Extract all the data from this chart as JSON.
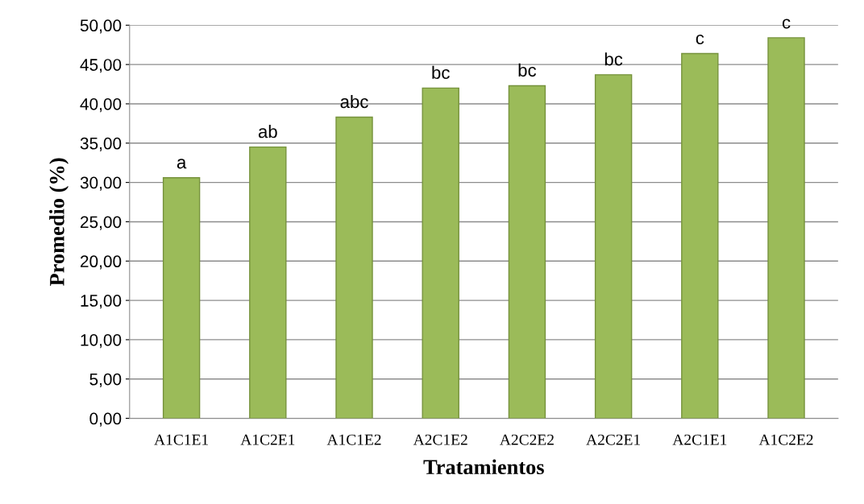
{
  "chart_data": {
    "type": "bar",
    "xlabel": "Tratamientos",
    "ylabel": "Promedio (%)",
    "categories": [
      "A1C1E1",
      "A1C2E1",
      "A1C1E2",
      "A2C1E2",
      "A2C2E2",
      "A2C2E1",
      "A2C1E1",
      "A1C2E2"
    ],
    "values": [
      30.6,
      34.5,
      38.3,
      42.0,
      42.3,
      43.7,
      46.4,
      48.4
    ],
    "color": "#9bbb59",
    "ylim": [
      0,
      50
    ],
    "yticks": [
      {
        "value": 0,
        "label": "0,00"
      },
      {
        "value": 5,
        "label": "5,00"
      },
      {
        "value": 10,
        "label": "10,00"
      },
      {
        "value": 15,
        "label": "15,00"
      },
      {
        "value": 20,
        "label": "20,00"
      },
      {
        "value": 25,
        "label": "25,00"
      },
      {
        "value": 30,
        "label": "30,00"
      },
      {
        "value": 35,
        "label": "35,00"
      },
      {
        "value": 40,
        "label": "40,00"
      },
      {
        "value": 45,
        "label": "45,00"
      },
      {
        "value": 50,
        "label": "50,00"
      }
    ],
    "grid": "y",
    "annotations": [
      {
        "text": "a",
        "x": "A1C1E1",
        "y": 30.6
      },
      {
        "text": "ab",
        "x": "A1C2E1",
        "y": 34.5
      },
      {
        "text": "abc",
        "x": "A1C1E2",
        "y": 38.3
      },
      {
        "text": "bc",
        "x": "A2C1E2",
        "y": 42.0
      },
      {
        "text": "bc",
        "x": "A2C2E2",
        "y": 42.3
      },
      {
        "text": "bc",
        "x": "A2C2E1",
        "y": 43.7
      },
      {
        "text": "c",
        "x": "A2C1E1",
        "y": 46.4
      },
      {
        "text": "c",
        "x": "A1C2E2",
        "y": 48.4
      }
    ]
  }
}
